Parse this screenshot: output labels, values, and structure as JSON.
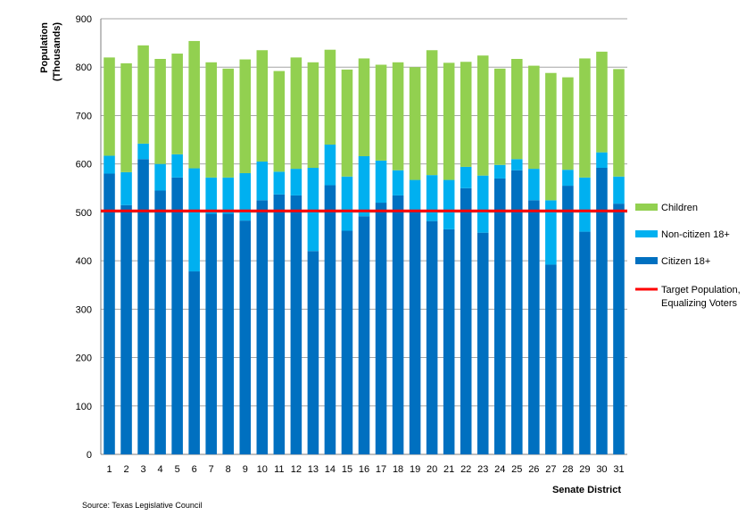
{
  "chart_data": {
    "type": "bar",
    "stacked": true,
    "ylabel_line1": "Population",
    "ylabel_line2": "(Thousands)",
    "xlabel": "Senate District",
    "ylim": [
      0,
      900
    ],
    "yticks": [
      0,
      100,
      200,
      300,
      400,
      500,
      600,
      700,
      800,
      900
    ],
    "grid": true,
    "legend_position": "right",
    "categories": [
      "1",
      "2",
      "3",
      "4",
      "5",
      "6",
      "7",
      "8",
      "9",
      "10",
      "11",
      "12",
      "13",
      "14",
      "15",
      "16",
      "17",
      "18",
      "19",
      "20",
      "21",
      "22",
      "23",
      "24",
      "25",
      "26",
      "27",
      "28",
      "29",
      "30",
      "31"
    ],
    "series": [
      {
        "name": "Citizen 18+",
        "color": "#0070c0",
        "values": [
          580,
          515,
          610,
          545,
          572,
          378,
          497,
          497,
          483,
          525,
          537,
          535,
          420,
          556,
          462,
          492,
          520,
          535,
          505,
          482,
          465,
          550,
          458,
          570,
          587,
          525,
          392,
          555,
          460,
          592,
          518
        ]
      },
      {
        "name": "Non-citizen 18+",
        "color": "#00b0f0",
        "values": [
          37,
          68,
          32,
          55,
          48,
          213,
          75,
          75,
          98,
          80,
          47,
          55,
          172,
          84,
          112,
          124,
          87,
          52,
          62,
          95,
          102,
          44,
          118,
          28,
          23,
          65,
          133,
          33,
          112,
          32,
          56
        ]
      },
      {
        "name": "Children",
        "color": "#92d050",
        "values": [
          203,
          225,
          203,
          217,
          208,
          263,
          238,
          225,
          235,
          230,
          208,
          230,
          218,
          196,
          221,
          202,
          198,
          223,
          233,
          258,
          242,
          217,
          248,
          199,
          207,
          213,
          263,
          191,
          246,
          208,
          222
        ]
      }
    ],
    "target_line": {
      "name": "Target Population, Equalizing Voters",
      "name_line1": "Target Population,",
      "name_line2": "Equalizing Voters",
      "value": 503,
      "color": "#ff0000"
    }
  },
  "source_text": "Source:  Texas Legislative Council"
}
